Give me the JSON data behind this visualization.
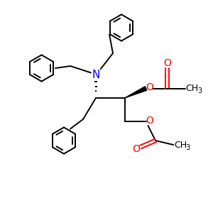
{
  "background_color": "#ffffff",
  "line_color": "#000000",
  "nitrogen_color": "#0000ff",
  "oxygen_color": "#ff0000",
  "figsize": [
    3.0,
    3.0
  ],
  "dpi": 100,
  "xlim": [
    0,
    10
  ],
  "ylim": [
    0,
    10
  ]
}
